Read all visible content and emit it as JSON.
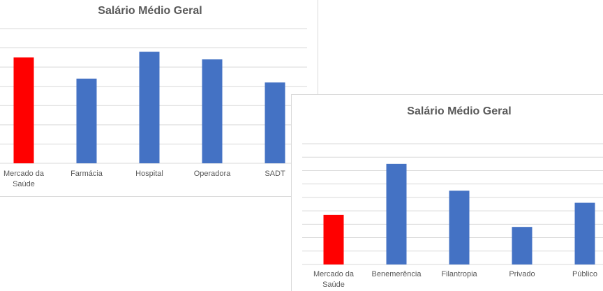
{
  "chart_data": [
    {
      "type": "bar",
      "title": "Salário Médio Geral",
      "categories": [
        [
          "Mercado da",
          "Saúde"
        ],
        [
          "Farmácia"
        ],
        [
          "Hospital"
        ],
        [
          "Operadora"
        ],
        [
          "SADT"
        ]
      ],
      "values": [
        5.5,
        4.4,
        5.8,
        5.4,
        4.2
      ],
      "colors": [
        "#ff0000",
        "#4472c4",
        "#4472c4",
        "#4472c4",
        "#4472c4"
      ],
      "ylim": [
        0,
        7
      ],
      "grid": true,
      "legend": "none"
    },
    {
      "type": "bar",
      "title": "Salário Médio Geral",
      "categories": [
        [
          "Mercado da",
          "Saúde"
        ],
        [
          "Benemerência"
        ],
        [
          "Filantropia"
        ],
        [
          "Privado"
        ],
        [
          "Público"
        ]
      ],
      "values": [
        3.7,
        7.5,
        5.5,
        2.8,
        4.6
      ],
      "colors": [
        "#ff0000",
        "#4472c4",
        "#4472c4",
        "#4472c4",
        "#4472c4"
      ],
      "ylim": [
        0,
        9
      ],
      "grid": true,
      "legend": "none"
    }
  ]
}
